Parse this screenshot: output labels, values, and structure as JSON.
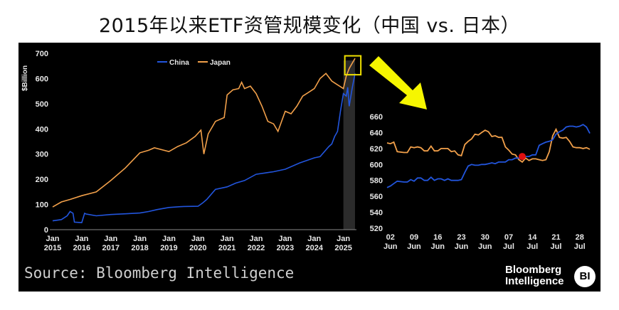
{
  "title": "2015年以来ETF资管规模变化（中国 vs. 日本）",
  "source": "Source: Bloomberg Intelligence",
  "logo": {
    "line1": "Bloomberg",
    "line2": "Intelligence",
    "badge": "BI"
  },
  "colors": {
    "china": "#2255dd",
    "japan": "#f2a04a",
    "highlight": "#f0e000",
    "arrow": "#f6f600",
    "marker": "#e01010",
    "axis_text": "#e8e8e8"
  },
  "chart_data": [
    {
      "type": "line",
      "ylabel": "$Billion",
      "ylim": [
        0,
        700
      ],
      "yticks": [
        0,
        100,
        200,
        300,
        400,
        500,
        600,
        700
      ],
      "xlim": [
        2015.0,
        2025.45
      ],
      "xticks": [
        {
          "value": 2015,
          "top": "Jan",
          "bottom": "2015"
        },
        {
          "value": 2016,
          "top": "Jan",
          "bottom": "2016"
        },
        {
          "value": 2017,
          "top": "Jan",
          "bottom": "2017"
        },
        {
          "value": 2018,
          "top": "Jan",
          "bottom": "2018"
        },
        {
          "value": 2019,
          "top": "Jan",
          "bottom": "2019"
        },
        {
          "value": 2020,
          "top": "Jan",
          "bottom": "2020"
        },
        {
          "value": 2021,
          "top": "Jan",
          "bottom": "2021"
        },
        {
          "value": 2022,
          "top": "Jan",
          "bottom": "2022"
        },
        {
          "value": 2023,
          "top": "Jan",
          "bottom": "2023"
        },
        {
          "value": 2024,
          "top": "Jan",
          "bottom": "2024"
        },
        {
          "value": 2025,
          "top": "Jan",
          "bottom": "2025"
        }
      ],
      "legend_position": "top-center",
      "shaded_region": [
        2025.0,
        2025.4
      ],
      "highlight_box": {
        "x": [
          2025.05,
          2025.6
        ],
        "y": [
          615,
          690
        ]
      },
      "series": [
        {
          "name": "China",
          "x": [
            2015.0,
            2015.3,
            2015.5,
            2015.6,
            2015.7,
            2015.75,
            2016.0,
            2016.1,
            2016.15,
            2016.5,
            2017.0,
            2017.5,
            2018.0,
            2018.3,
            2018.6,
            2019.0,
            2019.5,
            2020.0,
            2020.15,
            2020.3,
            2020.6,
            2021.0,
            2021.3,
            2021.6,
            2022.0,
            2022.3,
            2022.6,
            2023.0,
            2023.5,
            2024.0,
            2024.2,
            2024.5,
            2024.6,
            2024.7,
            2024.75,
            2024.8,
            2024.9,
            2025.0,
            2025.1,
            2025.15,
            2025.2,
            2025.3,
            2025.4
          ],
          "values": [
            35,
            40,
            55,
            72,
            65,
            30,
            28,
            65,
            62,
            55,
            60,
            63,
            66,
            72,
            80,
            88,
            92,
            93,
            105,
            120,
            160,
            170,
            185,
            195,
            220,
            225,
            230,
            240,
            265,
            285,
            290,
            330,
            340,
            370,
            380,
            390,
            470,
            540,
            530,
            565,
            490,
            560,
            620
          ]
        },
        {
          "name": "Japan",
          "x": [
            2015.0,
            2015.3,
            2015.6,
            2016.0,
            2016.5,
            2017.0,
            2017.5,
            2018.0,
            2018.3,
            2018.5,
            2019.0,
            2019.3,
            2019.6,
            2019.9,
            2020.1,
            2020.2,
            2020.35,
            2020.6,
            2020.9,
            2021.0,
            2021.2,
            2021.4,
            2021.5,
            2021.6,
            2021.8,
            2022.0,
            2022.2,
            2022.4,
            2022.6,
            2022.75,
            2023.0,
            2023.2,
            2023.4,
            2023.6,
            2023.8,
            2024.0,
            2024.2,
            2024.4,
            2024.6,
            2024.8,
            2025.0,
            2025.1,
            2025.2,
            2025.3,
            2025.4
          ],
          "values": [
            90,
            110,
            120,
            135,
            150,
            195,
            245,
            305,
            315,
            325,
            310,
            330,
            345,
            370,
            395,
            300,
            380,
            430,
            445,
            535,
            555,
            560,
            585,
            560,
            570,
            540,
            490,
            430,
            420,
            390,
            470,
            460,
            490,
            530,
            545,
            560,
            600,
            620,
            590,
            575,
            560,
            610,
            640,
            660,
            680
          ]
        }
      ]
    },
    {
      "type": "line",
      "ylim": [
        520,
        660
      ],
      "yticks": [
        520,
        540,
        560,
        580,
        600,
        620,
        640,
        660
      ],
      "xlim": [
        0,
        60
      ],
      "xticks": [
        {
          "value": 1,
          "top": "02",
          "bottom": "Jun"
        },
        {
          "value": 8,
          "top": "09",
          "bottom": "Jun"
        },
        {
          "value": 15,
          "top": "16",
          "bottom": "Jun"
        },
        {
          "value": 22,
          "top": "23",
          "bottom": "Jun"
        },
        {
          "value": 29,
          "top": "30",
          "bottom": "Jun"
        },
        {
          "value": 36,
          "top": "07",
          "bottom": "Jul"
        },
        {
          "value": 43,
          "top": "14",
          "bottom": "Jul"
        },
        {
          "value": 50,
          "top": "21",
          "bottom": "Jul"
        },
        {
          "value": 57,
          "top": "28",
          "bottom": "Jul"
        }
      ],
      "marker": {
        "x": 40,
        "y": 610
      },
      "series": [
        {
          "name": "China",
          "x": [
            0,
            1,
            2,
            3,
            5,
            6,
            7,
            8,
            9,
            10,
            11,
            12,
            13,
            14,
            15,
            16,
            17,
            18,
            19,
            20,
            21,
            22,
            23,
            24,
            25,
            26,
            27,
            28,
            29,
            30,
            31,
            32,
            33,
            34,
            35,
            36,
            37,
            38,
            39,
            40,
            41,
            42,
            43,
            44,
            45,
            46,
            47,
            48,
            49,
            50,
            51,
            52,
            53,
            54,
            55,
            56,
            57,
            58,
            59,
            60
          ],
          "values": [
            571,
            573,
            576,
            579,
            578,
            578,
            581,
            579,
            583,
            583,
            580,
            580,
            584,
            580,
            582,
            582,
            580,
            582,
            580,
            580,
            580,
            581,
            590,
            598,
            600,
            599,
            599,
            600,
            600,
            601,
            602,
            601,
            603,
            603,
            603,
            606,
            606,
            608,
            608,
            608,
            610,
            610,
            612,
            612,
            624,
            626,
            628,
            629,
            631,
            638,
            641,
            643,
            647,
            648,
            648,
            647,
            648,
            650,
            647,
            639
          ]
        },
        {
          "name": "Japan",
          "x": [
            0,
            1,
            2,
            3,
            5,
            6,
            7,
            8,
            9,
            10,
            11,
            12,
            13,
            14,
            15,
            16,
            17,
            18,
            19,
            20,
            21,
            22,
            23,
            24,
            25,
            26,
            27,
            28,
            29,
            30,
            31,
            32,
            33,
            34,
            35,
            36,
            37,
            38,
            39,
            40,
            41,
            42,
            43,
            44,
            45,
            46,
            47,
            48,
            49,
            50,
            51,
            52,
            53,
            54,
            55,
            56,
            57,
            58,
            59,
            60
          ],
          "values": [
            627,
            626,
            628,
            616,
            615,
            615,
            622,
            621,
            622,
            621,
            617,
            617,
            623,
            617,
            617,
            620,
            620,
            620,
            616,
            617,
            612,
            611,
            625,
            629,
            632,
            638,
            637,
            640,
            643,
            641,
            635,
            636,
            634,
            634,
            622,
            618,
            613,
            612,
            606,
            603,
            608,
            605,
            607,
            607,
            606,
            605,
            606,
            616,
            636,
            644,
            634,
            633,
            634,
            629,
            622,
            621,
            621,
            620,
            621,
            619
          ]
        }
      ]
    }
  ]
}
